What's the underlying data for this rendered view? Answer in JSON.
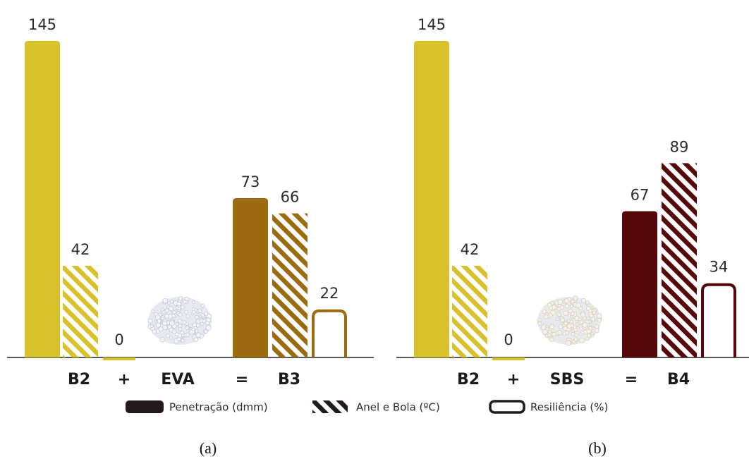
{
  "chart_data": [
    {
      "type": "bar",
      "caption": "(a)",
      "additive": "EVA",
      "operators": [
        "+",
        "="
      ],
      "series": [
        {
          "name": "B2",
          "color": "#d8c12b",
          "values": [
            145,
            42,
            0
          ]
        },
        {
          "name": "B3",
          "color": "#9b6b10",
          "values": [
            73,
            66,
            22
          ]
        }
      ]
    },
    {
      "type": "bar",
      "caption": "(b)",
      "additive": "SBS",
      "operators": [
        "+",
        "="
      ],
      "series": [
        {
          "name": "B2",
          "color": "#d8c12b",
          "values": [
            145,
            42,
            0
          ]
        },
        {
          "name": "B4",
          "color": "#560709",
          "values": [
            67,
            89,
            34
          ]
        }
      ]
    }
  ],
  "legend": {
    "entries": [
      "Penetração (dmm)",
      "Anel e Bola (ºC)",
      "Resiliência (%)"
    ],
    "color": "#231b1b"
  }
}
